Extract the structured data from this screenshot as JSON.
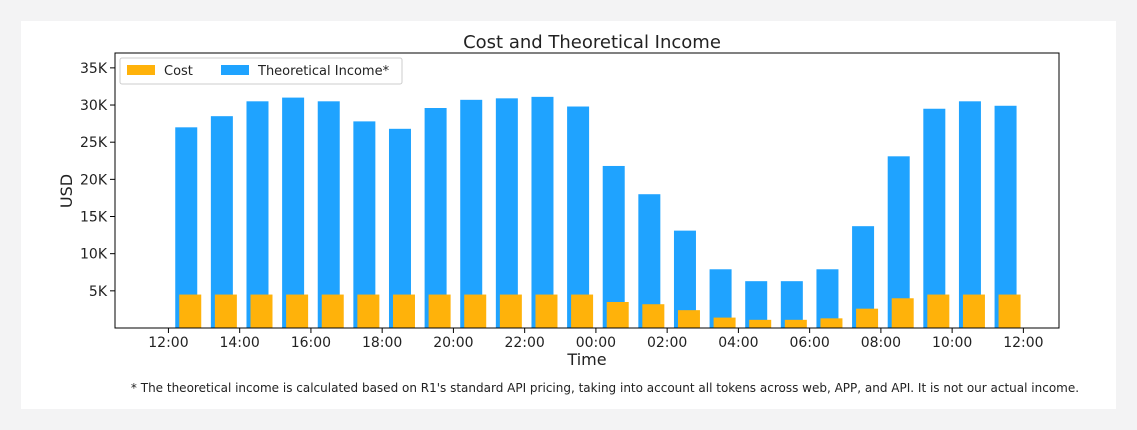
{
  "chart_data": {
    "type": "bar",
    "title": "Cost and Theoretical Income",
    "xlabel": "Time",
    "ylabel": "USD",
    "ylim": [
      0,
      37000
    ],
    "yticks": [
      5000,
      10000,
      15000,
      20000,
      25000,
      30000,
      35000
    ],
    "ytick_labels": [
      "5K",
      "10K",
      "15K",
      "20K",
      "25K",
      "30K",
      "35K"
    ],
    "xticks": [
      0,
      2,
      4,
      6,
      8,
      10,
      12,
      14,
      16,
      18,
      20,
      22,
      24
    ],
    "xtick_labels": [
      "12:00",
      "14:00",
      "16:00",
      "18:00",
      "20:00",
      "22:00",
      "00:00",
      "02:00",
      "04:00",
      "06:00",
      "08:00",
      "10:00",
      "12:00"
    ],
    "x": [
      0.5,
      1.5,
      2.5,
      3.5,
      4.5,
      5.5,
      6.5,
      7.5,
      8.5,
      9.5,
      10.5,
      11.5,
      12.5,
      13.5,
      14.5,
      15.5,
      16.5,
      17.5,
      18.5,
      19.5,
      20.5,
      21.5,
      22.5,
      23.5
    ],
    "series": [
      {
        "name": "Theoretical Income*",
        "color": "#1fa3ff",
        "values": [
          27000,
          28500,
          30500,
          31000,
          30500,
          27800,
          26800,
          29600,
          30700,
          30900,
          31100,
          29800,
          21800,
          18000,
          13100,
          7900,
          6300,
          6300,
          7900,
          13700,
          23100,
          29500,
          30500,
          29900
        ]
      },
      {
        "name": "Cost",
        "color": "#ffb20a",
        "values": [
          4500,
          4500,
          4500,
          4500,
          4500,
          4500,
          4500,
          4500,
          4500,
          4500,
          4500,
          4500,
          3500,
          3200,
          2400,
          1400,
          1100,
          1100,
          1300,
          2600,
          4000,
          4500,
          4500,
          4500
        ]
      }
    ],
    "legend_position": "top-left",
    "grid": false,
    "footnote": "* The theoretical income is calculated based on R1's standard API pricing, taking into account all tokens across web, APP, and API. It is not our actual income."
  }
}
